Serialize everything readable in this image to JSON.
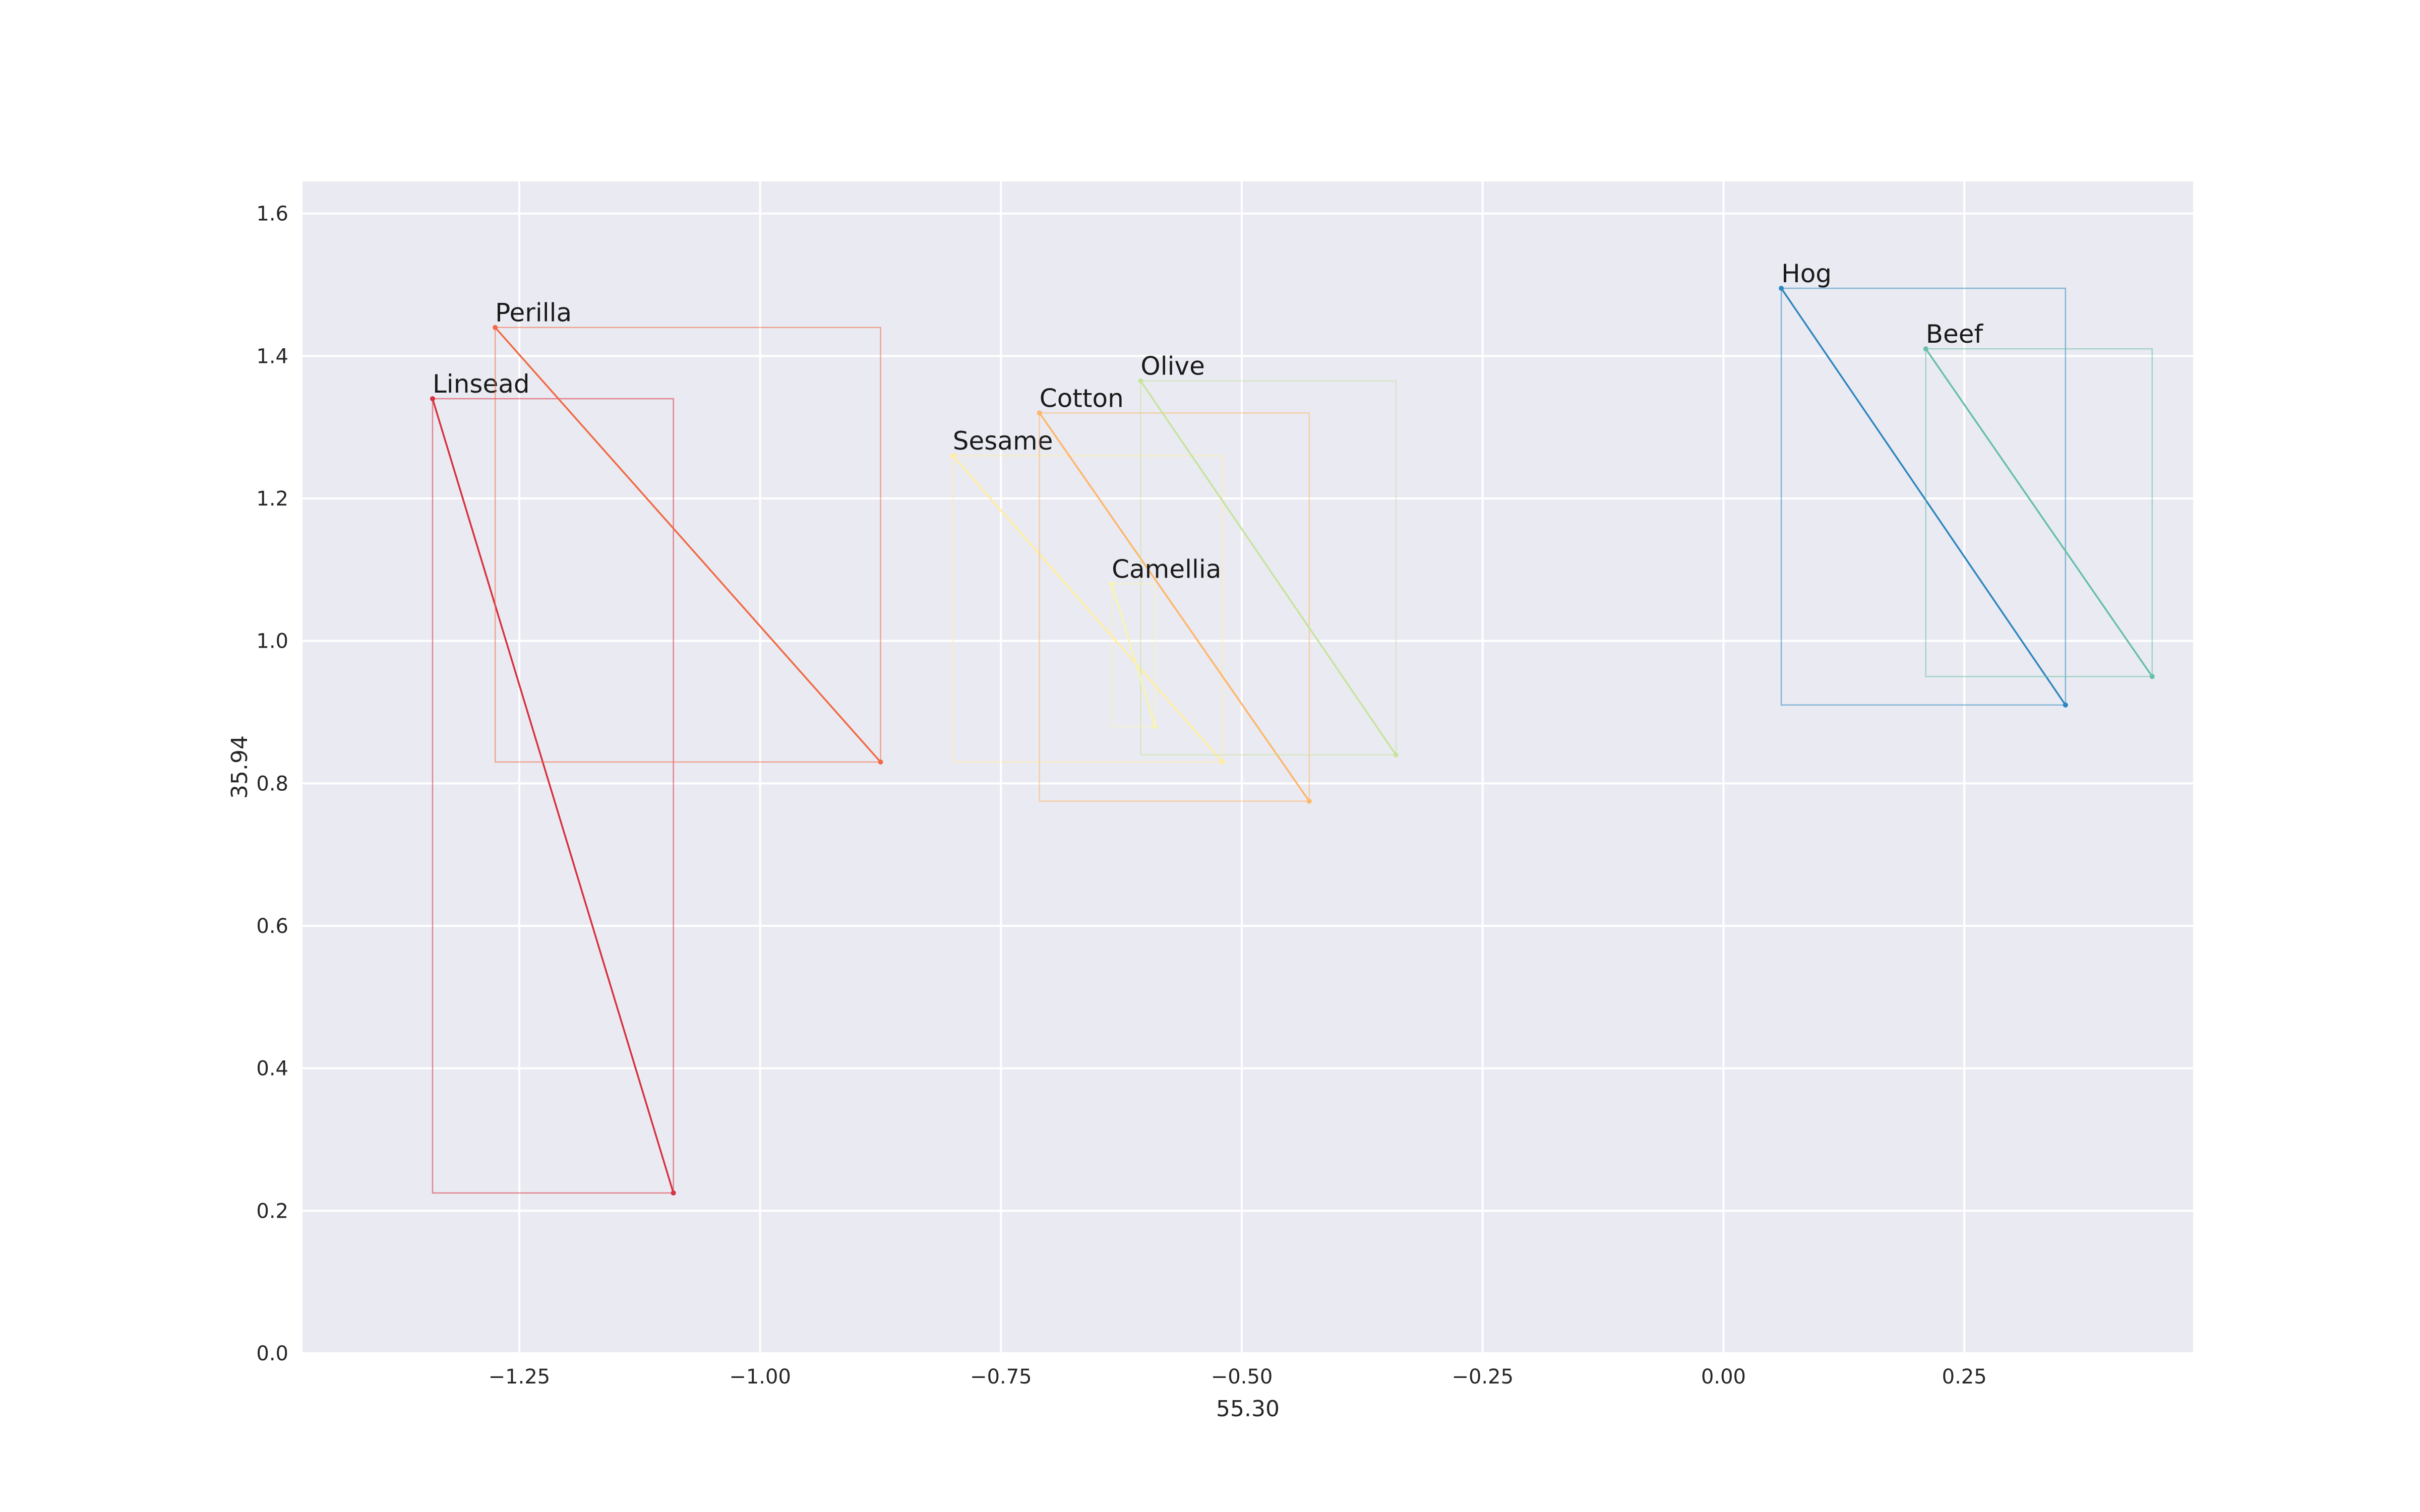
{
  "chart_data": {
    "type": "scatter",
    "title": "",
    "xlabel": "55.30",
    "ylabel": "35.94",
    "xlim": [
      -1.475,
      0.4875
    ],
    "ylim": [
      0,
      1.645
    ],
    "x_ticks": [
      -1.25,
      -1.0,
      -0.75,
      -0.5,
      -0.25,
      0.0,
      0.25
    ],
    "x_tick_labels": [
      "−1.25",
      "−1.00",
      "−0.75",
      "−0.50",
      "−0.25",
      "0.00",
      "0.25"
    ],
    "y_ticks": [
      0.0,
      0.2,
      0.4,
      0.6,
      0.8,
      1.0,
      1.2,
      1.4,
      1.6
    ],
    "y_tick_labels": [
      "0.0",
      "0.2",
      "0.4",
      "0.6",
      "0.8",
      "1.0",
      "1.2",
      "1.4",
      "1.6"
    ],
    "grid": true,
    "background": "#eaeaf2",
    "grid_color": "#ffffff",
    "series": [
      {
        "name": "Linsead",
        "x": [
          -1.34,
          -1.09
        ],
        "y": [
          1.34,
          0.225
        ],
        "color": "#d7303e"
      },
      {
        "name": "Perilla",
        "x": [
          -1.275,
          -0.875
        ],
        "y": [
          1.44,
          0.83
        ],
        "color": "#f06a45"
      },
      {
        "name": "Sesame",
        "x": [
          -0.8,
          -0.52
        ],
        "y": [
          1.26,
          0.83
        ],
        "color": "#ffed9e"
      },
      {
        "name": "Cotton",
        "x": [
          -0.71,
          -0.43
        ],
        "y": [
          1.32,
          0.775
        ],
        "color": "#fdb76a"
      },
      {
        "name": "Olive",
        "x": [
          -0.605,
          -0.34
        ],
        "y": [
          1.365,
          0.84
        ],
        "color": "#c6e49e"
      },
      {
        "name": "Camellia",
        "x": [
          -0.635,
          -0.59
        ],
        "y": [
          1.08,
          0.88
        ],
        "color": "#f7f5b0"
      },
      {
        "name": "Hog",
        "x": [
          0.06,
          0.355
        ],
        "y": [
          1.495,
          0.91
        ],
        "color": "#2e86c0"
      },
      {
        "name": "Beef",
        "x": [
          0.21,
          0.445
        ],
        "y": [
          1.41,
          0.95
        ],
        "color": "#67c0a8"
      }
    ]
  }
}
